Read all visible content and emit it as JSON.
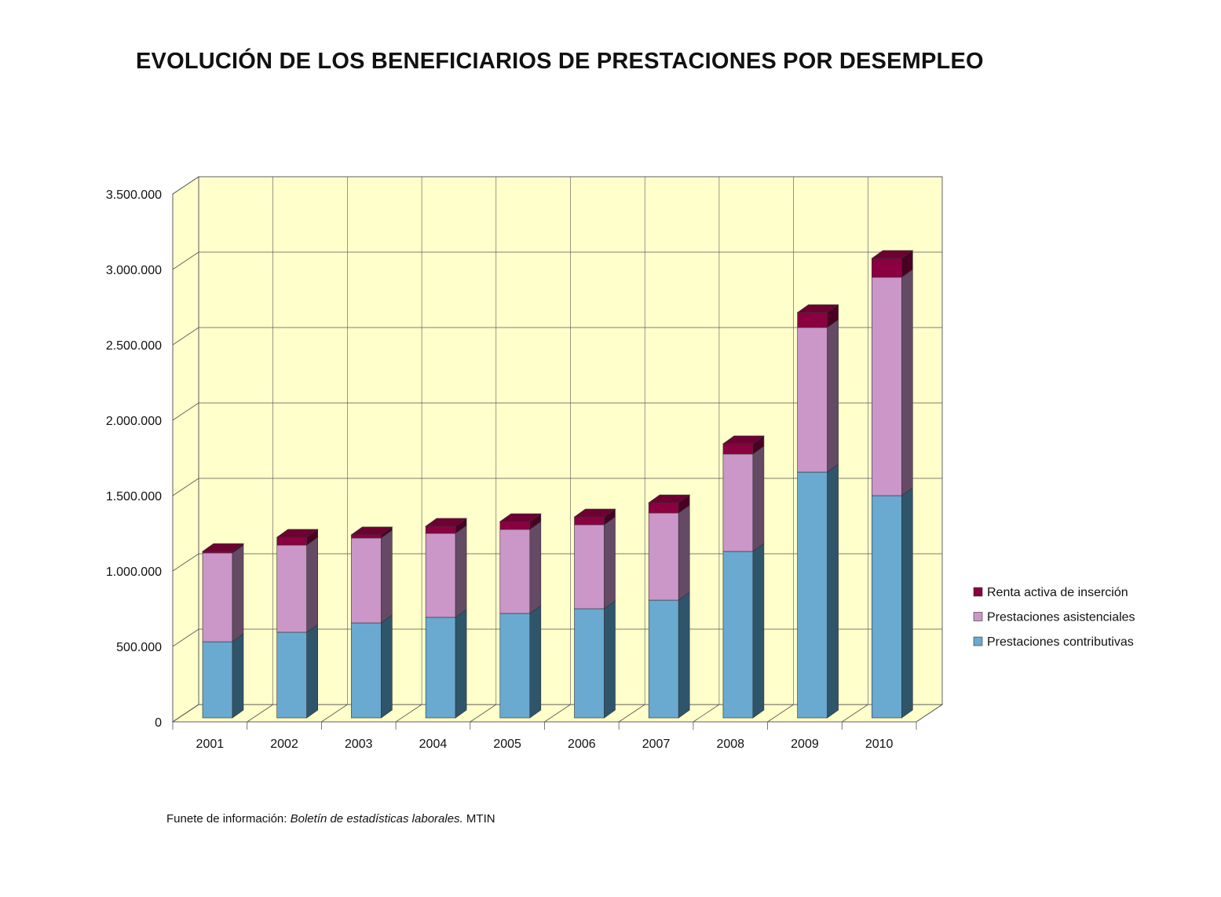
{
  "chart_data": {
    "type": "bar",
    "stacked": true,
    "three_d": true,
    "title": "EVOLUCIÓN DE LOS BENEFICIARIOS DE PRESTACIONES POR DESEMPLEO",
    "categories": [
      "2001",
      "2002",
      "2003",
      "2004",
      "2005",
      "2006",
      "2007",
      "2008",
      "2009",
      "2010"
    ],
    "series": [
      {
        "name": "Prestaciones contributivas",
        "color": "#6aa9d0",
        "side": "#2f556b",
        "values": [
          505000,
          568000,
          630000,
          667000,
          693000,
          724000,
          781000,
          1104000,
          1630000,
          1474000
        ]
      },
      {
        "name": "Prestaciones asistenciales",
        "color": "#cb96c8",
        "side": "#654a65",
        "values": [
          589000,
          578000,
          563000,
          557000,
          557000,
          557000,
          578000,
          646000,
          959000,
          1448000
        ]
      },
      {
        "name": "Renta activa de inserción",
        "color": "#8b0040",
        "side": "#4a0022",
        "values": [
          10000,
          52000,
          21000,
          47000,
          52000,
          52000,
          68000,
          68000,
          99000,
          125000
        ]
      }
    ],
    "yticks": [
      "0",
      "500.000",
      "1.000.000",
      "1.500.000",
      "2.000.000",
      "2.500.000",
      "3.000.000",
      "3.500.000"
    ],
    "ylim": [
      0,
      3500000
    ],
    "legend": {
      "placement": "right",
      "order": [
        "Renta activa de inserción",
        "Prestaciones asistenciales",
        "Prestaciones contributivas"
      ]
    },
    "wall_color": "#ffffcc",
    "grid": true
  },
  "source": {
    "prefix": "Funete de información:",
    "publication": "Boletín de estadísticas laborales.",
    "org": "MTIN"
  }
}
